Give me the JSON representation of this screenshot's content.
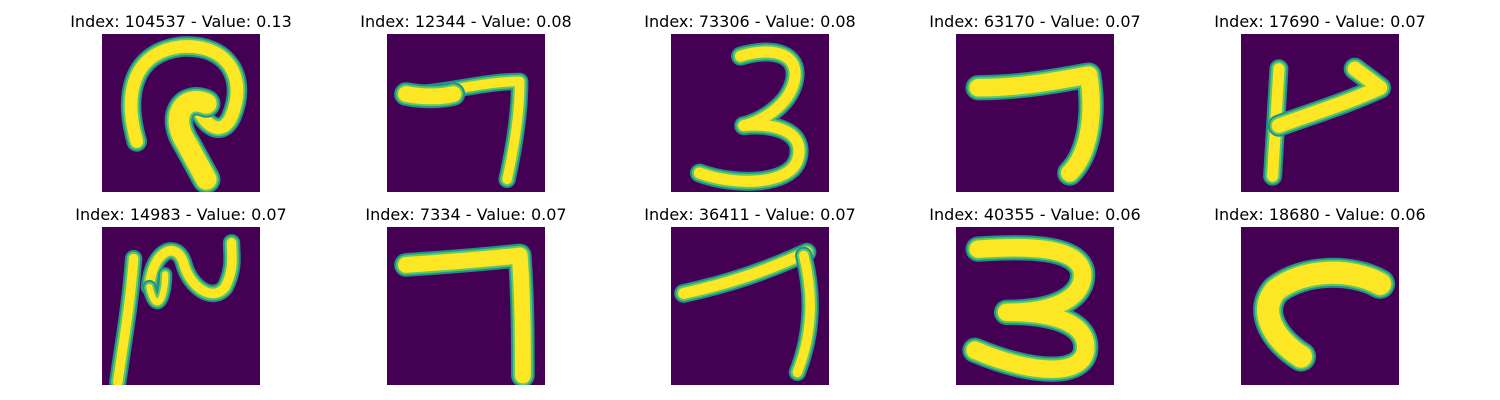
{
  "panels": [
    {
      "index": "104537",
      "value": "0.13",
      "glyph": "q-shape"
    },
    {
      "index": "12344",
      "value": "0.08",
      "glyph": "seven-thin"
    },
    {
      "index": "73306",
      "value": "0.08",
      "glyph": "three"
    },
    {
      "index": "63170",
      "value": "0.07",
      "glyph": "seven-bold"
    },
    {
      "index": "17690",
      "value": "0.07",
      "glyph": "four-open"
    },
    {
      "index": "14983",
      "value": "0.07",
      "glyph": "scribble"
    },
    {
      "index": "7334",
      "value": "0.07",
      "glyph": "seven-box"
    },
    {
      "index": "36411",
      "value": "0.07",
      "glyph": "seven-slant"
    },
    {
      "index": "40355",
      "value": "0.06",
      "glyph": "three-bold"
    },
    {
      "index": "18680",
      "value": "0.06",
      "glyph": "hook"
    }
  ],
  "title_prefix": "Index: ",
  "title_separator": " - Value: ",
  "colors": {
    "background": "#440154",
    "stroke_core": "#fde725",
    "stroke_edge": "#21918c",
    "stroke_mid": "#5ec962"
  }
}
